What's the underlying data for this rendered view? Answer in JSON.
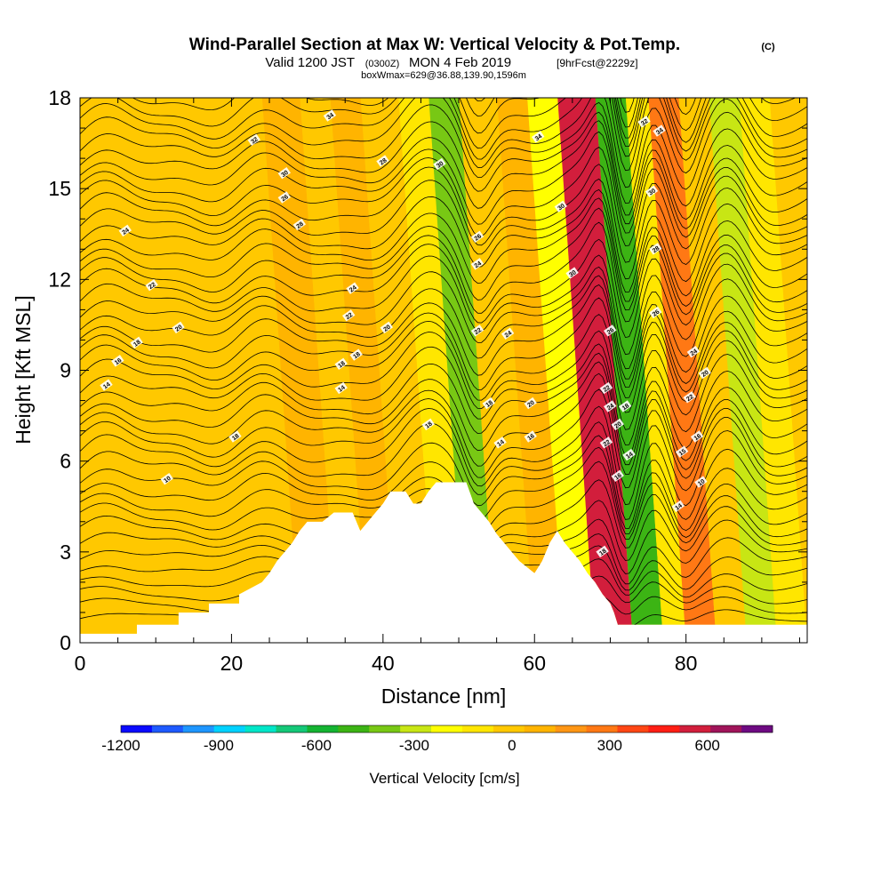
{
  "chart_data": {
    "type": "heatmap",
    "title": "Wind-Parallel Section at Max W: Vertical Velocity & Pot.Temp.",
    "title_unit": "(C)",
    "subtitle_valid": "Valid 1200 JST",
    "subtitle_utc": "(0300Z)",
    "subtitle_date": "MON 4 Feb 2019",
    "subtitle_fcst": "[9hrFcst@2229z]",
    "subtitle_box": "boxWmax=629@36.88,139.90,1596m",
    "xlabel": "Distance [nm]",
    "ylabel": "Height [Kft MSL]",
    "xlim": [
      0,
      96
    ],
    "ylim": [
      0,
      18
    ],
    "x_ticks": [
      0,
      20,
      40,
      60,
      80
    ],
    "x_tick_labels": [
      "0",
      "20",
      "40",
      "60",
      "80"
    ],
    "y_ticks": [
      0,
      3,
      6,
      9,
      12,
      15,
      18
    ],
    "y_tick_labels": [
      "0",
      "3",
      "6",
      "9",
      "12",
      "15",
      "18"
    ],
    "colorbar": {
      "label": "Vertical Velocity [cm/s]",
      "min": -1200,
      "max": 800,
      "step": 100,
      "tick_values": [
        -1200,
        -900,
        -600,
        -300,
        0,
        300,
        600
      ],
      "tick_labels": [
        "-1200",
        "-900",
        "-600",
        "-300",
        "0",
        "300",
        "600"
      ],
      "colors": [
        "#0a0aff",
        "#1e5aff",
        "#1e96ff",
        "#00d2ff",
        "#00e6c8",
        "#14c878",
        "#14b432",
        "#3cb414",
        "#78c814",
        "#c8e614",
        "#ffff00",
        "#ffe600",
        "#ffc800",
        "#ffb400",
        "#ff9614",
        "#ff7814",
        "#ff4614",
        "#ff1e14",
        "#d21e3c",
        "#a0145a",
        "#6e0a82"
      ]
    },
    "terrain_kft": [
      {
        "x": 0,
        "h": 0.3
      },
      {
        "x": 7.5,
        "h": 0.3
      },
      {
        "x": 7.5,
        "h": 0.6
      },
      {
        "x": 13,
        "h": 0.6
      },
      {
        "x": 13,
        "h": 1.0
      },
      {
        "x": 17,
        "h": 1.0
      },
      {
        "x": 17,
        "h": 1.3
      },
      {
        "x": 21,
        "h": 1.3
      },
      {
        "x": 21,
        "h": 1.6
      },
      {
        "x": 24,
        "h": 2.0
      },
      {
        "x": 25,
        "h": 2.3
      },
      {
        "x": 26,
        "h": 2.7
      },
      {
        "x": 27,
        "h": 3.0
      },
      {
        "x": 28,
        "h": 3.3
      },
      {
        "x": 29,
        "h": 3.7
      },
      {
        "x": 30,
        "h": 4.0
      },
      {
        "x": 32,
        "h": 4.0
      },
      {
        "x": 33.5,
        "h": 4.3
      },
      {
        "x": 36,
        "h": 4.3
      },
      {
        "x": 37,
        "h": 3.7
      },
      {
        "x": 38,
        "h": 4.0
      },
      {
        "x": 39,
        "h": 4.3
      },
      {
        "x": 40,
        "h": 4.6
      },
      {
        "x": 41,
        "h": 5.0
      },
      {
        "x": 43,
        "h": 5.0
      },
      {
        "x": 44,
        "h": 4.6
      },
      {
        "x": 45,
        "h": 4.6
      },
      {
        "x": 46,
        "h": 5.0
      },
      {
        "x": 47,
        "h": 5.3
      },
      {
        "x": 51,
        "h": 5.3
      },
      {
        "x": 52,
        "h": 4.6
      },
      {
        "x": 53,
        "h": 4.3
      },
      {
        "x": 54,
        "h": 4.0
      },
      {
        "x": 55,
        "h": 3.6
      },
      {
        "x": 56,
        "h": 3.3
      },
      {
        "x": 57,
        "h": 3.0
      },
      {
        "x": 58,
        "h": 2.7
      },
      {
        "x": 60,
        "h": 2.3
      },
      {
        "x": 61,
        "h": 2.7
      },
      {
        "x": 62,
        "h": 3.3
      },
      {
        "x": 63,
        "h": 3.7
      },
      {
        "x": 64,
        "h": 3.3
      },
      {
        "x": 65,
        "h": 3.0
      },
      {
        "x": 66,
        "h": 2.7
      },
      {
        "x": 67,
        "h": 2.3
      },
      {
        "x": 68,
        "h": 2.0
      },
      {
        "x": 69,
        "h": 1.6
      },
      {
        "x": 70,
        "h": 1.3
      },
      {
        "x": 70.5,
        "h": 1.0
      },
      {
        "x": 71,
        "h": 0.6
      },
      {
        "x": 84,
        "h": 0.6
      },
      {
        "x": 96,
        "h": 0.6
      }
    ],
    "vertical_velocity_cells": [
      {
        "x0": 0,
        "x1": 9,
        "w": 50
      },
      {
        "x0": 9,
        "x1": 13,
        "w": 0
      },
      {
        "x0": 13,
        "x1": 17,
        "w": 80
      },
      {
        "x0": 17,
        "x1": 21,
        "w": 0
      },
      {
        "x0": 21,
        "x1": 25,
        "w": 80
      },
      {
        "x0": 25,
        "x1": 29,
        "w": 30
      },
      {
        "x0": 29,
        "x1": 34,
        "w": 120
      },
      {
        "x0": 34,
        "x1": 38,
        "w": 20
      },
      {
        "x0": 38,
        "x1": 42,
        "w": 130
      },
      {
        "x0": 42,
        "x1": 47,
        "w": 40
      },
      {
        "x0": 47,
        "x1": 51,
        "w": -80
      },
      {
        "x0": 51,
        "x1": 55,
        "w": -380
      },
      {
        "x0": 55,
        "x1": 60,
        "w": 60
      },
      {
        "x0": 60,
        "x1": 64,
        "w": 130
      },
      {
        "x0": 64,
        "x1": 68,
        "w": -150
      },
      {
        "x0": 68,
        "x1": 73,
        "w": 640
      },
      {
        "x0": 73,
        "x1": 77,
        "w": -420
      },
      {
        "x0": 77,
        "x1": 80,
        "w": -80
      },
      {
        "x0": 80,
        "x1": 84,
        "w": 320
      },
      {
        "x0": 84,
        "x1": 88,
        "w": 40
      },
      {
        "x0": 88,
        "x1": 92,
        "w": -250
      },
      {
        "x0": 92,
        "x1": 96,
        "w": -30
      }
    ],
    "contour_labels": [
      {
        "x": 33,
        "y": 17.4,
        "t": "34"
      },
      {
        "x": 23,
        "y": 16.6,
        "t": "32"
      },
      {
        "x": 27,
        "y": 15.5,
        "t": "30"
      },
      {
        "x": 27,
        "y": 14.7,
        "t": "26"
      },
      {
        "x": 29,
        "y": 13.8,
        "t": "28"
      },
      {
        "x": 6,
        "y": 13.6,
        "t": "24"
      },
      {
        "x": 40,
        "y": 15.9,
        "t": "28"
      },
      {
        "x": 47.5,
        "y": 15.8,
        "t": "30"
      },
      {
        "x": 60.5,
        "y": 16.7,
        "t": "34"
      },
      {
        "x": 63.5,
        "y": 14.4,
        "t": "30"
      },
      {
        "x": 65,
        "y": 12.2,
        "t": "30"
      },
      {
        "x": 52.5,
        "y": 13.4,
        "t": "26"
      },
      {
        "x": 52.5,
        "y": 12.5,
        "t": "24"
      },
      {
        "x": 9.5,
        "y": 11.8,
        "t": "22"
      },
      {
        "x": 36,
        "y": 11.7,
        "t": "24"
      },
      {
        "x": 35.5,
        "y": 10.8,
        "t": "22"
      },
      {
        "x": 13,
        "y": 10.4,
        "t": "20"
      },
      {
        "x": 40.5,
        "y": 10.4,
        "t": "20"
      },
      {
        "x": 52.5,
        "y": 10.3,
        "t": "22"
      },
      {
        "x": 56.5,
        "y": 10.2,
        "t": "24"
      },
      {
        "x": 7.5,
        "y": 9.9,
        "t": "18"
      },
      {
        "x": 36.5,
        "y": 9.5,
        "t": "18"
      },
      {
        "x": 34.5,
        "y": 9.2,
        "t": "18"
      },
      {
        "x": 5,
        "y": 9.3,
        "t": "16"
      },
      {
        "x": 3.5,
        "y": 8.5,
        "t": "14"
      },
      {
        "x": 34.5,
        "y": 8.4,
        "t": "14"
      },
      {
        "x": 54,
        "y": 7.9,
        "t": "18"
      },
      {
        "x": 59.5,
        "y": 7.9,
        "t": "20"
      },
      {
        "x": 46,
        "y": 7.2,
        "t": "18"
      },
      {
        "x": 20.5,
        "y": 6.8,
        "t": "18"
      },
      {
        "x": 55.5,
        "y": 6.6,
        "t": "14"
      },
      {
        "x": 59.5,
        "y": 6.8,
        "t": "16"
      },
      {
        "x": 11.5,
        "y": 5.4,
        "t": "10"
      },
      {
        "x": 74.5,
        "y": 17.2,
        "t": "32"
      },
      {
        "x": 76.5,
        "y": 16.9,
        "t": "34"
      },
      {
        "x": 75.5,
        "y": 14.9,
        "t": "30"
      },
      {
        "x": 76,
        "y": 13.0,
        "t": "28"
      },
      {
        "x": 76,
        "y": 10.9,
        "t": "26"
      },
      {
        "x": 70,
        "y": 10.3,
        "t": "26"
      },
      {
        "x": 81,
        "y": 9.6,
        "t": "24"
      },
      {
        "x": 82.5,
        "y": 8.9,
        "t": "20"
      },
      {
        "x": 69.5,
        "y": 8.4,
        "t": "22"
      },
      {
        "x": 80.5,
        "y": 8.1,
        "t": "22"
      },
      {
        "x": 70,
        "y": 7.8,
        "t": "24"
      },
      {
        "x": 72,
        "y": 7.8,
        "t": "18"
      },
      {
        "x": 71,
        "y": 7.2,
        "t": "20"
      },
      {
        "x": 69.5,
        "y": 6.6,
        "t": "22"
      },
      {
        "x": 72.5,
        "y": 6.2,
        "t": "14"
      },
      {
        "x": 81.5,
        "y": 6.8,
        "t": "16"
      },
      {
        "x": 79.5,
        "y": 6.3,
        "t": "15"
      },
      {
        "x": 71,
        "y": 5.5,
        "t": "16"
      },
      {
        "x": 82,
        "y": 5.3,
        "t": "10"
      },
      {
        "x": 79,
        "y": 4.5,
        "t": "14"
      },
      {
        "x": 69,
        "y": 3.0,
        "t": "18"
      }
    ]
  }
}
